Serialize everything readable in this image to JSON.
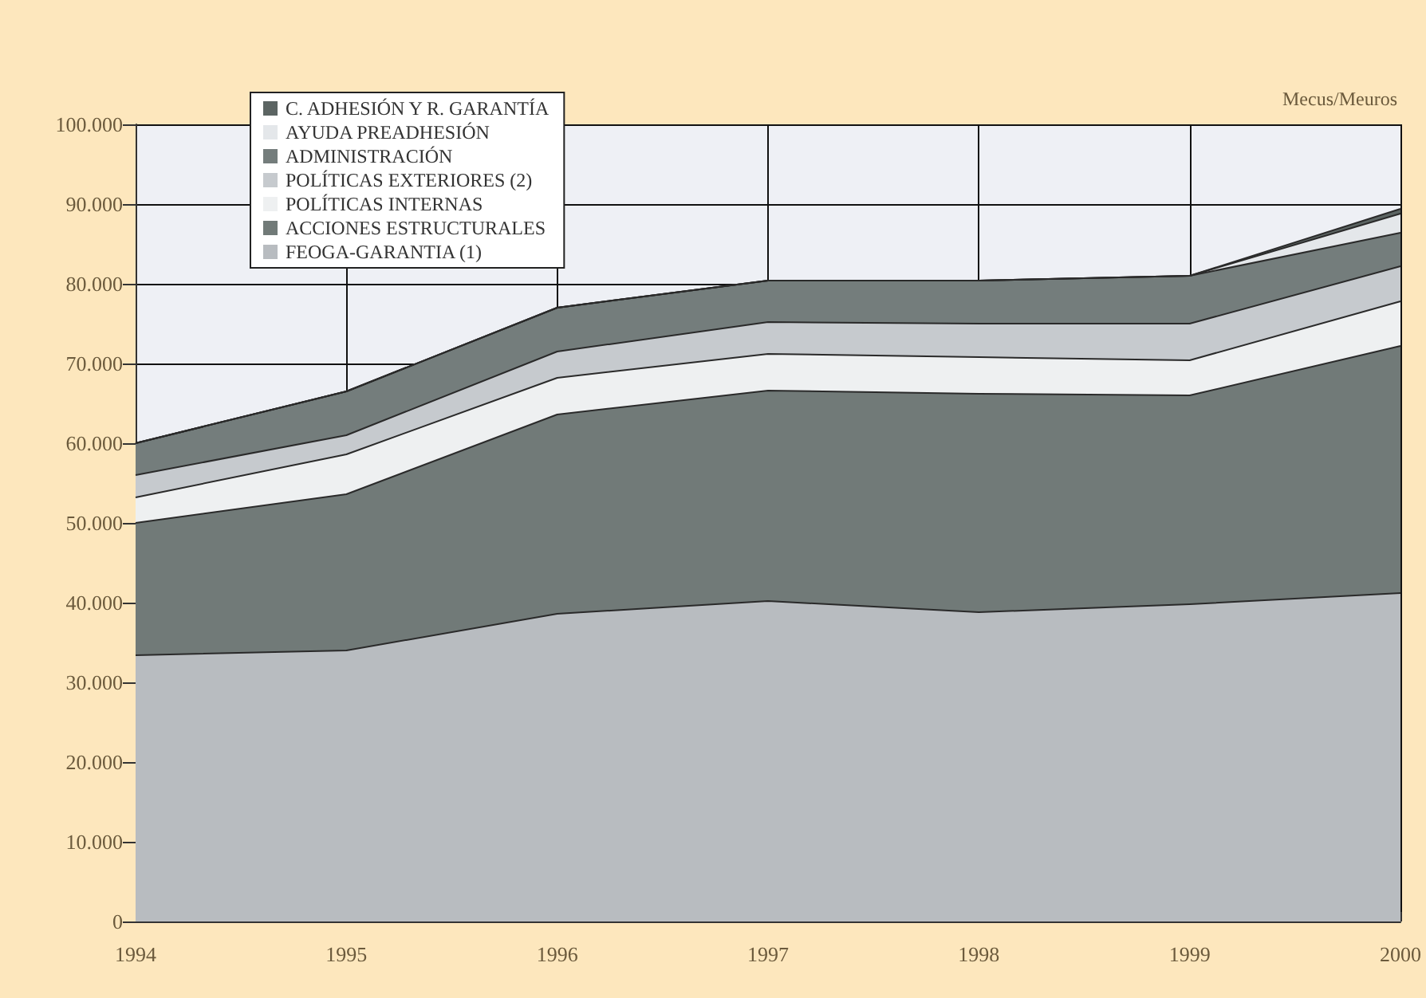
{
  "chart_data": {
    "type": "area",
    "stacked": true,
    "categories": [
      "1994",
      "1995",
      "1996",
      "1997",
      "1998",
      "1999",
      "2000"
    ],
    "ylim": [
      0,
      100000
    ],
    "yticks": [
      {
        "value": 0,
        "label": "0"
      },
      {
        "value": 10000,
        "label": "10.000"
      },
      {
        "value": 20000,
        "label": "20.000"
      },
      {
        "value": 30000,
        "label": "30.000"
      },
      {
        "value": 40000,
        "label": "40.000"
      },
      {
        "value": 50000,
        "label": "50.000"
      },
      {
        "value": 60000,
        "label": "60.000"
      },
      {
        "value": 70000,
        "label": "70.000"
      },
      {
        "value": 80000,
        "label": "80.000"
      },
      {
        "value": 90000,
        "label": "90.000"
      },
      {
        "value": 100000,
        "label": "100.000"
      }
    ],
    "grid": true,
    "legend": "top left",
    "marker": "none",
    "line_style": "solid",
    "annotations": [
      "Mecus/Meuros"
    ],
    "series": [
      {
        "name": "FEOGA-GARANTIA (1)",
        "color": "#b8bcc0",
        "values": [
          33400,
          34000,
          38600,
          40200,
          38800,
          39800,
          41200
        ]
      },
      {
        "name": "ACCIONES ESTRUCTURALES",
        "color": "#717a78",
        "values": [
          16600,
          19600,
          25000,
          26400,
          27400,
          26200,
          31000
        ]
      },
      {
        "name": "POLÍTICAS INTERNAS",
        "color": "#eef0f1",
        "values": [
          3200,
          5000,
          4600,
          4600,
          4600,
          4400,
          5600
        ]
      },
      {
        "name": "POLÍTICAS EXTERIORES (2)",
        "color": "#c6cace",
        "values": [
          2800,
          2400,
          3300,
          4000,
          4200,
          4600,
          4400
        ]
      },
      {
        "name": "ADMINISTRACIÓN",
        "color": "#747d7c",
        "values": [
          4000,
          5500,
          5500,
          5200,
          5400,
          6000,
          4200
        ]
      },
      {
        "name": "AYUDA PREADHESIÓN",
        "color": "#e4e7ea",
        "values": [
          0,
          0,
          0,
          0,
          0,
          0,
          2400
        ]
      },
      {
        "name": "C. ADHESIÓN Y R. GARANTÍA",
        "color": "#5c6563",
        "values": [
          0,
          0,
          0,
          0,
          0,
          0,
          600
        ]
      }
    ]
  }
}
